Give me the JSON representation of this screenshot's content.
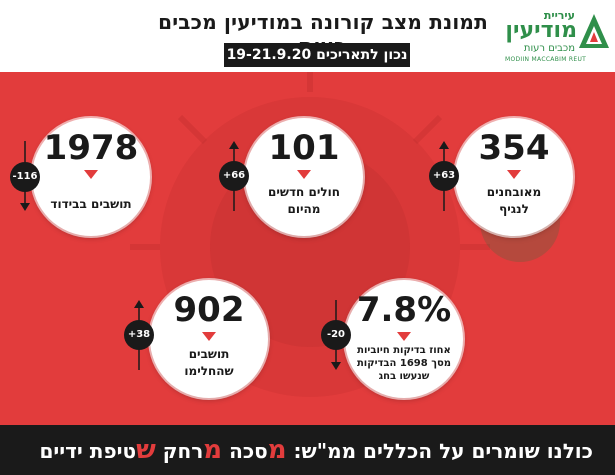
{
  "header": {
    "title": "תמונת מצב קורונה במודיעין מכבים רעות",
    "subtitle": "נכון לתאריכים 19-21.9.20"
  },
  "logo": {
    "line1": "עיריית",
    "line2": "מודיעין",
    "line3": "מכבים רעות",
    "english": "MODIIN MACCABIM REUT"
  },
  "stats": [
    {
      "id": "quarantine",
      "value": "1978",
      "label": "תושבים בבידוד",
      "change": "-116",
      "direction": "down"
    },
    {
      "id": "new_patients",
      "value": "101",
      "label": "חולים חדשים מהיום",
      "change": "+66",
      "direction": "up"
    },
    {
      "id": "confirmed",
      "value": "354",
      "label": "מאובחנים לנגיף",
      "change": "+63",
      "direction": "up"
    },
    {
      "id": "recovered",
      "value": "902",
      "label": "תושבים שהחלימו",
      "change": "+38",
      "direction": "up"
    },
    {
      "id": "positive_rate",
      "value": "7.8%",
      "label": "אחוז בדיקות חיוביות מסך 1698 הבדיקות שנעשו בחג",
      "change": "-20",
      "direction": "down"
    }
  ],
  "footer": {
    "prefix": "כולנו שומרים על הכללים ממ\"ש: ",
    "m1": "מ",
    "w1": "סכה ",
    "m2": "מ",
    "w2": "רחק ",
    "s": "ש",
    "w3": "טיפת ידיים"
  },
  "colors": {
    "accent": "#e23c3c",
    "dark": "#1a1a1a",
    "logo_green": "#2f8f4a"
  }
}
